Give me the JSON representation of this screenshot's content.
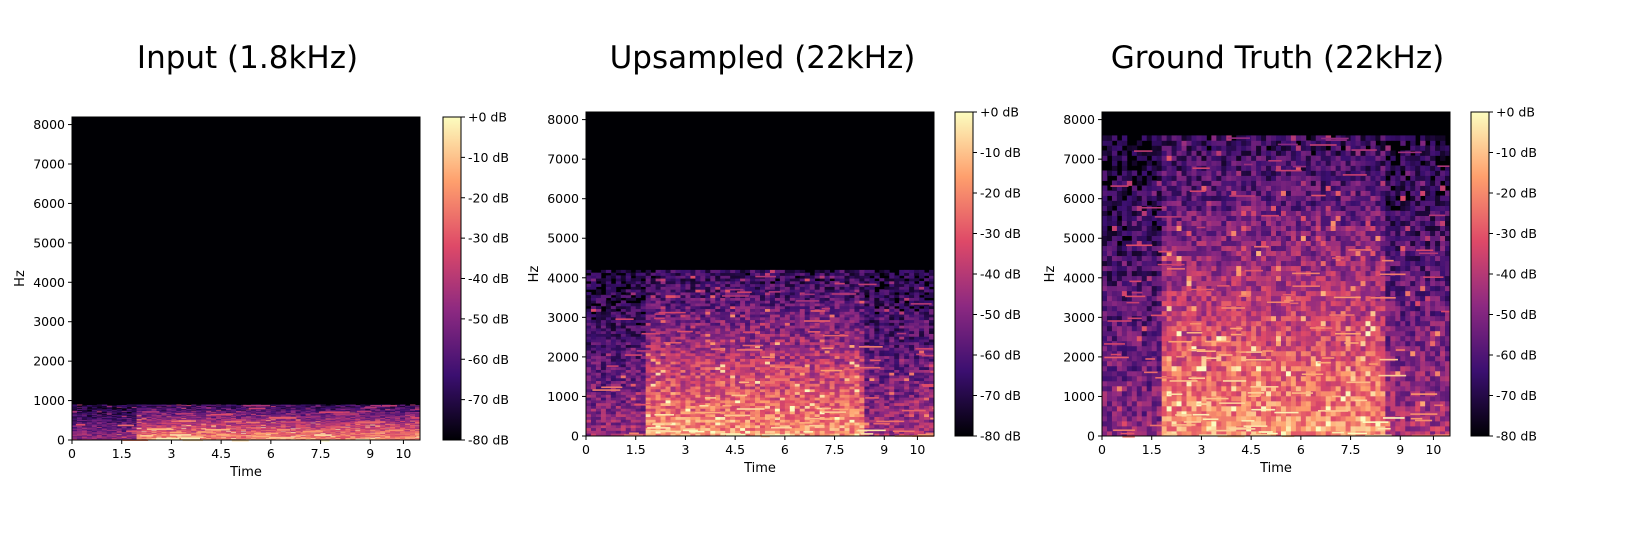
{
  "chart_data": [
    {
      "type": "heatmap",
      "title": "Input (1.8kHz)",
      "xlabel": "Time",
      "ylabel": "Hz",
      "xlim": [
        0,
        10.5
      ],
      "ylim": [
        0,
        8192
      ],
      "xticks": [
        "0",
        "1.5",
        "3",
        "4.5",
        "6",
        "7.5",
        "9",
        "10"
      ],
      "yticks": [
        "0",
        "1000",
        "2000",
        "3000",
        "4000",
        "5000",
        "6000",
        "7000",
        "8000"
      ],
      "colorbar": {
        "range_db": [
          -80,
          0
        ],
        "ticks": [
          "+0 dB",
          "-10 dB",
          "-20 dB",
          "-30 dB",
          "-40 dB",
          "-50 dB",
          "-60 dB",
          "-70 dB",
          "-80 dB"
        ]
      },
      "colormap": [
        "#000004",
        "#3b0f70",
        "#8c2981",
        "#de4968",
        "#fe9f6d",
        "#fcfdbf"
      ],
      "max_freq_hz": 900,
      "activity": [
        [
          0,
          1.9,
          0.55
        ],
        [
          1.9,
          10.5,
          1.0
        ]
      ]
    },
    {
      "type": "heatmap",
      "title": "Upsampled (22kHz)",
      "xlabel": "Time",
      "ylabel": "Hz",
      "xlim": [
        0,
        10.5
      ],
      "ylim": [
        0,
        8192
      ],
      "xticks": [
        "0",
        "1.5",
        "3",
        "4.5",
        "6",
        "7.5",
        "9",
        "10"
      ],
      "yticks": [
        "0",
        "1000",
        "2000",
        "3000",
        "4000",
        "5000",
        "6000",
        "7000",
        "8000"
      ],
      "colorbar": {
        "range_db": [
          -80,
          0
        ],
        "ticks": [
          "+0 dB",
          "-10 dB",
          "-20 dB",
          "-30 dB",
          "-40 dB",
          "-50 dB",
          "-60 dB",
          "-70 dB",
          "-80 dB"
        ]
      },
      "colormap": [
        "#000004",
        "#3b0f70",
        "#8c2981",
        "#de4968",
        "#fe9f6d",
        "#fcfdbf"
      ],
      "max_freq_hz": 4200,
      "activity": [
        [
          0,
          1.8,
          0.55
        ],
        [
          1.8,
          8.4,
          1.0
        ],
        [
          8.4,
          10.5,
          0.6
        ]
      ]
    },
    {
      "type": "heatmap",
      "title": "Ground Truth (22kHz)",
      "xlabel": "Time",
      "ylabel": "Hz",
      "xlim": [
        0,
        10.5
      ],
      "ylim": [
        0,
        8192
      ],
      "xticks": [
        "0",
        "1.5",
        "3",
        "4.5",
        "6",
        "7.5",
        "9",
        "10"
      ],
      "yticks": [
        "0",
        "1000",
        "2000",
        "3000",
        "4000",
        "5000",
        "6000",
        "7000",
        "8000"
      ],
      "colorbar": {
        "range_db": [
          -80,
          0
        ],
        "ticks": [
          "+0 dB",
          "-10 dB",
          "-20 dB",
          "-30 dB",
          "-40 dB",
          "-50 dB",
          "-60 dB",
          "-70 dB",
          "-80 dB"
        ]
      },
      "colormap": [
        "#000004",
        "#3b0f70",
        "#8c2981",
        "#de4968",
        "#fe9f6d",
        "#fcfdbf"
      ],
      "max_freq_hz": 7600,
      "activity": [
        [
          0,
          1.8,
          0.5
        ],
        [
          1.8,
          8.5,
          1.0
        ],
        [
          8.5,
          10.5,
          0.6
        ]
      ]
    }
  ]
}
